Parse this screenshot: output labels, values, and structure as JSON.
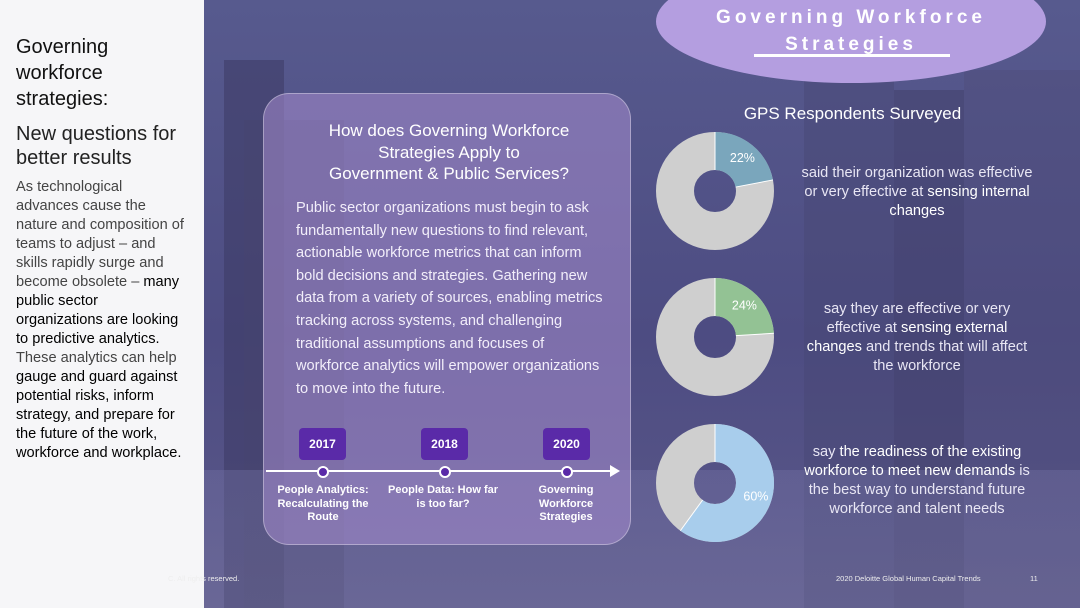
{
  "left_panel": {
    "title": "Governing workforce strategies:",
    "subtitle": "New questions for better results",
    "body_plain_1": "As technological advances cause the nature and composition of teams to adjust – and skills rapidly surge and become obsolete – ",
    "body_bold_1": "many public sector organizations are looking to predictive analytics.",
    "body_plain_2": " These analytics can help ",
    "body_bold_2": "gauge and guard against potential risks, inform strategy, and prepare for the future of the work, workforce and workplace."
  },
  "header_tab": {
    "line1": "Governing Workforce",
    "line2": "Strategies",
    "color": "#b49ee0"
  },
  "card": {
    "title_line1": "How does Governing Workforce",
    "title_line2": "Strategies Apply to",
    "title_line3": "Government & Public Services?",
    "body": "Public sector organizations must begin to ask fundamentally new questions to find relevant, actionable workforce metrics that can inform bold decisions and strategies. Gathering new data from a variety of sources, enabling metrics tracking across systems, and challenging traditional assumptions and focuses of workforce analytics will empower organizations to move into the future."
  },
  "timeline": [
    {
      "year": "2017",
      "label": "People Analytics: Recalculating the Route"
    },
    {
      "year": "2018",
      "label": "People Data: How far is too far?"
    },
    {
      "year": "2020",
      "label": "Governing Workforce Strategies"
    }
  ],
  "stats": {
    "heading": "GPS Respondents Surveyed",
    "items": [
      {
        "percent": 22,
        "percent_label": "22%",
        "color": "#7aa6bc",
        "text_plain_1": "said their organization was effective or very effective at ",
        "text_bold_1": "sensing internal changes",
        "text_plain_2": ""
      },
      {
        "percent": 24,
        "percent_label": "24%",
        "color": "#93c294",
        "text_plain_1": "say they are effective or very effective at ",
        "text_bold_1": "sensing external changes",
        "text_plain_2": " and trends that will affect the workforce"
      },
      {
        "percent": 60,
        "percent_label": "60%",
        "color": "#a8cdec",
        "text_plain_1": "say ",
        "text_bold_1": "the readiness of the existing workforce to meet new demands",
        "text_plain_2": " is the best way to understand future workforce and talent needs"
      }
    ],
    "ring_rest_color": "#cfcfcf"
  },
  "footer": {
    "copyright": "C. All rights reserved.",
    "report": "2020 Deloitte Global Human Capital Trends",
    "page": "11"
  }
}
